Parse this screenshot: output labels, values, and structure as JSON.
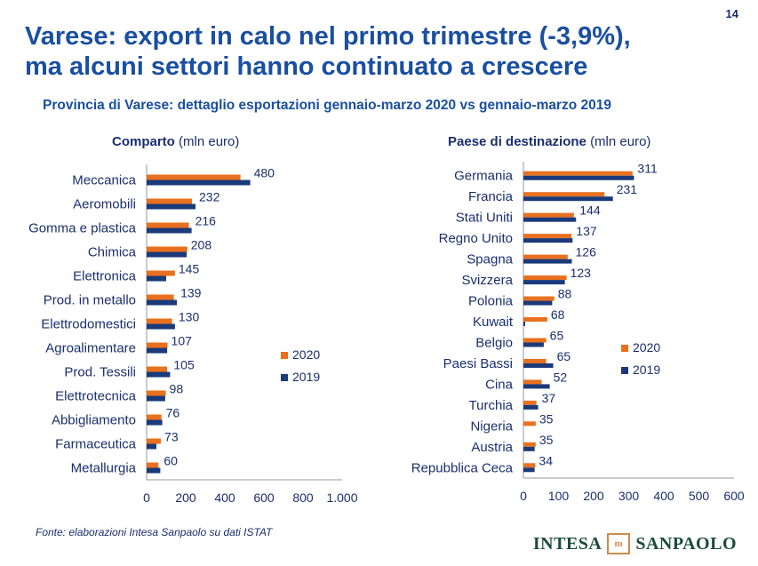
{
  "page_number": "14",
  "title_line1": "Varese: export in calo nel primo trimestre (-3,9%),",
  "title_line2": "ma alcuni settori hanno continuato a crescere",
  "subtitle": "Provincia di Varese: dettaglio esportazioni gennaio-marzo 2020 vs gennaio-marzo 2019",
  "source": "Fonte: elaborazioni Intesa Sanpaolo su dati ISTAT",
  "logo": {
    "part1": "INTESA",
    "part2": "SANPAOLO",
    "mark": "m"
  },
  "colors": {
    "series_2020": "#e8701e",
    "series_2019": "#1a3a7a",
    "label": "#1a2f6e"
  },
  "chart_data": [
    {
      "type": "bar",
      "orientation": "horizontal",
      "title_bold": "Comparto",
      "title_unit": "(mln euro)",
      "categories": [
        "Meccanica",
        "Aeromobili",
        "Gomma e plastica",
        "Chimica",
        "Elettronica",
        "Prod. in metallo",
        "Elettrodomestici",
        "Agroalimentare",
        "Prod. Tessili",
        "Elettrotecnica",
        "Abbigliamento",
        "Farmaceutica",
        "Metallurgia"
      ],
      "series": [
        {
          "name": "2020",
          "values": [
            480,
            232,
            216,
            208,
            145,
            139,
            130,
            107,
            105,
            98,
            76,
            73,
            60
          ]
        },
        {
          "name": "2019",
          "values": [
            530,
            250,
            230,
            205,
            100,
            155,
            145,
            105,
            120,
            95,
            80,
            50,
            70
          ]
        }
      ],
      "data_labels": [
        "480",
        "232",
        "216",
        "208",
        "145",
        "139",
        "130",
        "107",
        "105",
        "98",
        "76",
        "73",
        "60"
      ],
      "xlim": [
        0,
        1000
      ],
      "xticks": [
        0,
        200,
        400,
        600,
        800,
        1000
      ],
      "xtick_labels": [
        "0",
        "200",
        "400",
        "600",
        "800",
        "1.000"
      ],
      "legend_position": "right-middle"
    },
    {
      "type": "bar",
      "orientation": "horizontal",
      "title_bold": "Paese di destinazione",
      "title_unit": "(mln euro)",
      "categories": [
        "Germania",
        "Francia",
        "Stati Uniti",
        "Regno Unito",
        "Spagna",
        "Svizzera",
        "Polonia",
        "Kuwait",
        "Belgio",
        "Paesi Bassi",
        "Cina",
        "Turchia",
        "Nigeria",
        "Austria",
        "Repubblica Ceca"
      ],
      "series": [
        {
          "name": "2020",
          "values": [
            311,
            231,
            144,
            137,
            126,
            123,
            88,
            68,
            65,
            65,
            52,
            37,
            35,
            35,
            34
          ]
        },
        {
          "name": "2019",
          "values": [
            315,
            255,
            150,
            140,
            138,
            118,
            82,
            5,
            58,
            85,
            75,
            42,
            0,
            32,
            32
          ]
        }
      ],
      "data_labels": [
        "311",
        "231",
        "144",
        "137",
        "126",
        "123",
        "88",
        "68",
        "65",
        "65",
        "52",
        "37",
        "35",
        "35",
        "34"
      ],
      "xlim": [
        0,
        600
      ],
      "xticks": [
        0,
        100,
        200,
        300,
        400,
        500,
        600
      ],
      "xtick_labels": [
        "0",
        "100",
        "200",
        "300",
        "400",
        "500",
        "600"
      ],
      "legend_position": "right-middle"
    }
  ]
}
